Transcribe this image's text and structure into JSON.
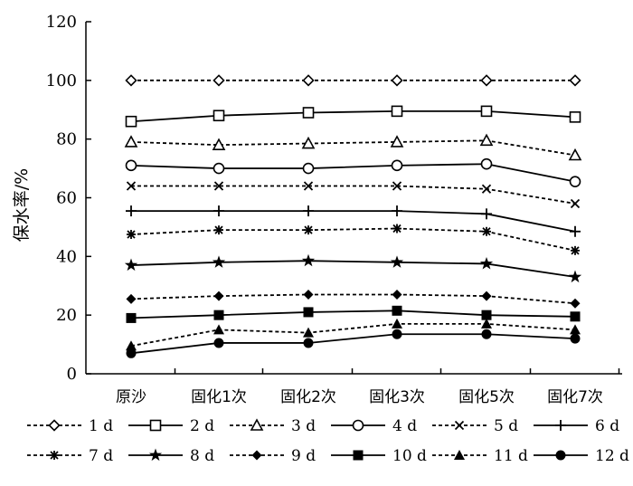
{
  "chart_data": {
    "type": "line",
    "title": "",
    "xlabel": "",
    "ylabel": "保水率/%",
    "ylim": [
      0,
      120
    ],
    "yticks": [
      0,
      20,
      40,
      60,
      80,
      100,
      120
    ],
    "grid": false,
    "legend_position": "bottom",
    "categories": [
      "原沙",
      "固化1次",
      "固化2次",
      "固化3次",
      "固化5次",
      "固化7次"
    ],
    "series": [
      {
        "name": "1 d",
        "marker": "diamond-open",
        "dashed": true,
        "values": [
          100,
          100,
          100,
          100,
          100,
          100
        ]
      },
      {
        "name": "2 d",
        "marker": "square-open",
        "dashed": false,
        "values": [
          86,
          88,
          89,
          89.5,
          89.5,
          87.5
        ]
      },
      {
        "name": "3 d",
        "marker": "triangle-open",
        "dashed": true,
        "values": [
          79,
          78,
          78.5,
          79,
          79.5,
          74.5
        ]
      },
      {
        "name": "4 d",
        "marker": "circle-open",
        "dashed": false,
        "values": [
          71,
          70,
          70,
          71,
          71.5,
          65.5
        ]
      },
      {
        "name": "5 d",
        "marker": "x",
        "dashed": true,
        "values": [
          64,
          64,
          64,
          64,
          63,
          58
        ]
      },
      {
        "name": "6 d",
        "marker": "plus",
        "dashed": false,
        "values": [
          55.5,
          55.5,
          55.5,
          55.5,
          54.5,
          48.5
        ]
      },
      {
        "name": "7 d",
        "marker": "asterisk",
        "dashed": true,
        "values": [
          47.5,
          49,
          49,
          49.5,
          48.5,
          42
        ]
      },
      {
        "name": "8 d",
        "marker": "star",
        "dashed": false,
        "values": [
          37,
          38,
          38.5,
          38,
          37.5,
          33
        ]
      },
      {
        "name": "9 d",
        "marker": "diamond",
        "dashed": true,
        "values": [
          25.5,
          26.5,
          27,
          27,
          26.5,
          24
        ]
      },
      {
        "name": "10 d",
        "marker": "square",
        "dashed": false,
        "values": [
          19,
          20,
          21,
          21.5,
          20,
          19.5
        ]
      },
      {
        "name": "11 d",
        "marker": "triangle",
        "dashed": true,
        "values": [
          9.5,
          15,
          14,
          17,
          17,
          15
        ]
      },
      {
        "name": "12 d",
        "marker": "circle",
        "dashed": false,
        "values": [
          7,
          10.5,
          10.5,
          13.5,
          13.5,
          12
        ]
      }
    ]
  }
}
